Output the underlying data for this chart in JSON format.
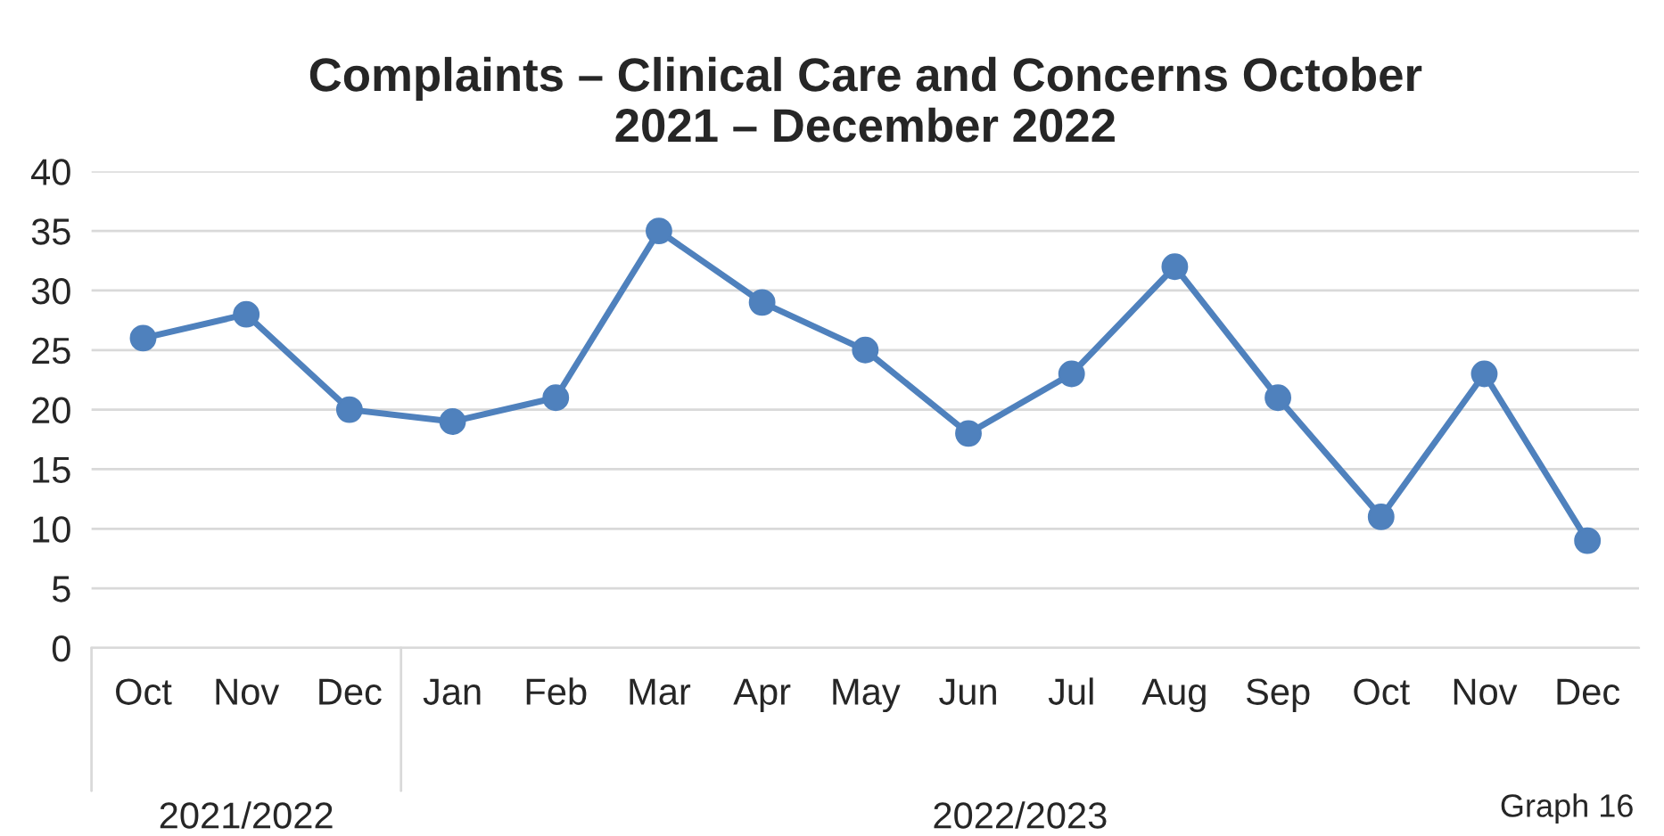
{
  "chart_data": {
    "type": "line",
    "title": "Complaints – Clinical Care and Concerns October\n2021 – December 2022",
    "categories": [
      "Oct",
      "Nov",
      "Dec",
      "Jan",
      "Feb",
      "Mar",
      "Apr",
      "May",
      "Jun",
      "Jul",
      "Aug",
      "Sep",
      "Oct",
      "Nov",
      "Dec"
    ],
    "series": [
      {
        "color": "#4f81bd",
        "values": [
          26,
          28,
          20,
          19,
          21,
          35,
          29,
          25,
          18,
          23,
          32,
          21,
          11,
          23,
          9
        ]
      }
    ],
    "ylim": [
      0,
      40
    ],
    "yticks": [
      0,
      5,
      10,
      15,
      20,
      25,
      30,
      35,
      40
    ],
    "grid": "y",
    "marker": "circle",
    "line_style": "solid",
    "annotations": [
      "2021/2022",
      "2022/2023",
      "Graph 16"
    ]
  }
}
